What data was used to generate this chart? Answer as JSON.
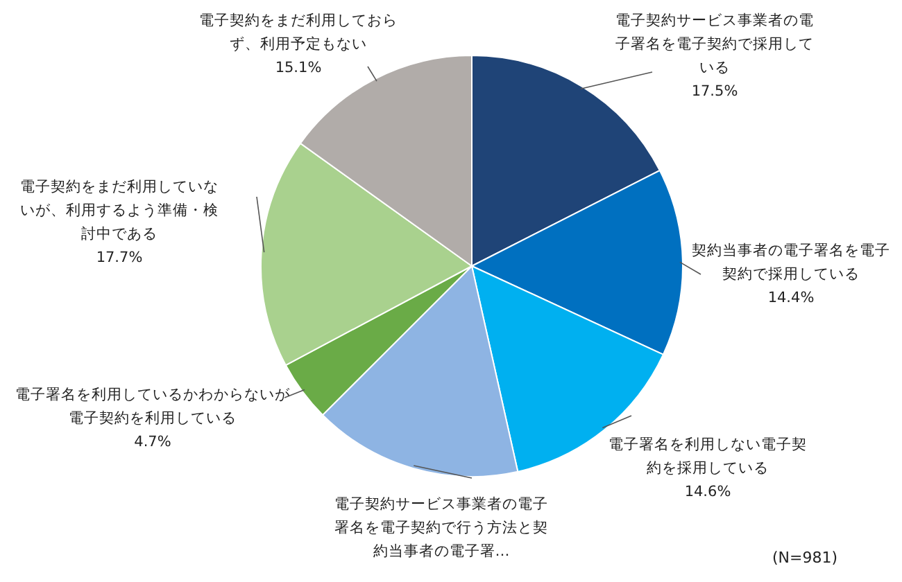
{
  "chart_data": {
    "type": "pie",
    "categories": [
      "電子契約サービス事業者の電子署名を電子契約で採用している",
      "契約当事者の電子署名を電子契約で採用している",
      "電子署名を利用しない電子契約を採用している",
      "電子契約サービス事業者の電子署名を電子契約で行う方法と契約当事者の電子署…",
      "電子署名を利用しているかわからないが電子契約を利用している",
      "電子契約をまだ利用していないが、利用するよう準備・検討中である",
      "電子契約をまだ利用しておらず、利用予定もない"
    ],
    "values": [
      17.5,
      14.4,
      14.6,
      16.0,
      4.7,
      17.7,
      15.1
    ],
    "value_labels": [
      "17.5%",
      "14.4%",
      "14.6%",
      null,
      "4.7%",
      "17.7%",
      "15.1%"
    ],
    "colors": [
      "#1f4477",
      "#0070c0",
      "#00b0f0",
      "#8eb4e3",
      "#6aab47",
      "#a9d18e",
      "#b1aca9"
    ],
    "annotations": [
      "(N=981)"
    ]
  }
}
